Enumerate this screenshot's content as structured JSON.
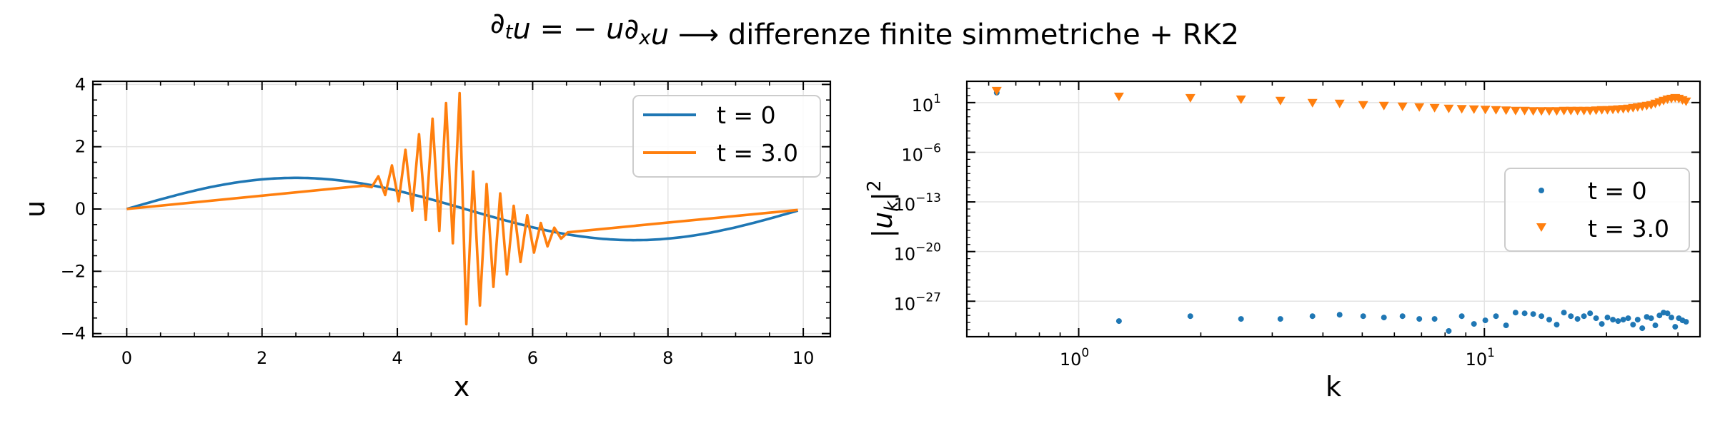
{
  "title": "∂ₜu = − u∂ₓu  ⟶  differenze finite simmetriche + RK2",
  "colors": {
    "t0": "#1f77b4",
    "t3": "#ff7f0e",
    "grid": "#e3e3e3",
    "axis": "#000000"
  },
  "chart_data": [
    {
      "type": "line",
      "xlabel": "x",
      "ylabel": "u",
      "xlim": [
        -0.5,
        10.4
      ],
      "ylim": [
        -4.1,
        4.1
      ],
      "xticks": [
        0,
        2,
        4,
        6,
        8,
        10
      ],
      "yticks": [
        -4,
        -2,
        0,
        2,
        4
      ],
      "grid": true,
      "legend_position": "upper right",
      "series": [
        {
          "name": "t = 0",
          "color": "#1f77b4",
          "function": "sin(2πx/10)",
          "x": [
            0,
            0.5,
            1,
            1.5,
            2,
            2.5,
            3,
            3.5,
            4,
            4.5,
            5,
            5.5,
            6,
            6.5,
            7,
            7.5,
            8,
            8.5,
            9,
            9.5,
            9.92
          ],
          "y": [
            0,
            0.31,
            0.59,
            0.81,
            0.95,
            1.0,
            0.95,
            0.81,
            0.59,
            0.31,
            0.0,
            -0.31,
            -0.59,
            -0.81,
            -0.95,
            -1.0,
            -0.95,
            -0.81,
            -0.59,
            -0.31,
            -0.05
          ]
        },
        {
          "name": "t = 3.0",
          "color": "#ff7f0e",
          "x": [
            0,
            3.5,
            3.62,
            3.72,
            3.82,
            3.92,
            4.02,
            4.12,
            4.22,
            4.32,
            4.42,
            4.52,
            4.62,
            4.72,
            4.82,
            4.92,
            5.02,
            5.12,
            5.22,
            5.32,
            5.42,
            5.52,
            5.62,
            5.72,
            5.82,
            5.92,
            6.02,
            6.12,
            6.22,
            6.32,
            6.42,
            6.52,
            9.92
          ],
          "y": [
            0,
            0.75,
            0.7,
            1.05,
            0.45,
            1.4,
            0.25,
            1.9,
            -0.05,
            2.4,
            -0.35,
            2.9,
            -0.7,
            3.4,
            -1.1,
            3.72,
            -3.7,
            1.2,
            -3.1,
            0.8,
            -2.5,
            0.5,
            -2.1,
            0.1,
            -1.7,
            -0.2,
            -1.4,
            -0.45,
            -1.2,
            -0.6,
            -0.95,
            -0.75,
            -0.03
          ]
        }
      ]
    },
    {
      "type": "scatter",
      "xlabel": "k",
      "ylabel": "|u_k|²",
      "xscale": "log",
      "yscale": "log",
      "xlim": [
        0.53,
        34
      ],
      "ylim_exponent": [
        -32,
        4
      ],
      "xticks": [
        {
          "value": 1,
          "label": "10",
          "exp": "0"
        },
        {
          "value": 10,
          "label": "10",
          "exp": "1"
        }
      ],
      "yticks": [
        {
          "exp": 1,
          "label": "10",
          "sup": "1"
        },
        {
          "exp": -6,
          "label": "10",
          "sup": "−6"
        },
        {
          "exp": -13,
          "label": "10",
          "sup": "−13"
        },
        {
          "exp": -20,
          "label": "10",
          "sup": "−20"
        },
        {
          "exp": -27,
          "label": "10",
          "sup": "−27"
        }
      ],
      "grid": true,
      "legend_position": "center right",
      "series": [
        {
          "name": "t = 0",
          "color": "#1f77b4",
          "marker": "dot",
          "k": [
            0.628,
            1.257,
            1.885,
            2.513,
            3.142,
            3.77,
            4.398,
            5.027,
            5.655,
            6.283,
            6.912,
            7.54,
            8.168,
            8.796,
            9.425,
            10.053,
            10.681,
            11.31,
            11.938,
            12.566,
            13.195,
            13.823,
            14.451,
            15.08,
            15.708,
            16.336,
            16.965,
            17.593,
            18.221,
            18.85,
            19.478,
            20.106,
            20.735,
            21.363,
            21.991,
            22.619,
            23.248,
            23.876,
            24.504,
            25.133,
            25.761,
            26.389,
            27.018,
            27.646,
            28.274,
            28.903,
            29.531,
            30.159,
            30.788,
            31.416
          ],
          "log10_power": [
            2.4,
            -29.8,
            -29.1,
            -29.5,
            -29.5,
            -29.1,
            -28.9,
            -29.1,
            -29.3,
            -29.1,
            -29.5,
            -29.5,
            -31.2,
            -29.1,
            -30.2,
            -29.7,
            -29.1,
            -30.4,
            -28.6,
            -28.7,
            -28.8,
            -29.1,
            -29.6,
            -30.3,
            -28.6,
            -29.1,
            -29.5,
            -29.1,
            -28.7,
            -29.4,
            -30.2,
            -29.3,
            -29.6,
            -29.8,
            -29.6,
            -29.4,
            -30.3,
            -29.6,
            -30.8,
            -29.2,
            -29.4,
            -30.4,
            -29.0,
            -28.6,
            -28.7,
            -29.3,
            -30.6,
            -29.4,
            -29.7,
            -29.9
          ]
        },
        {
          "name": "t = 3.0",
          "color": "#ff7f0e",
          "marker": "triangle-down",
          "k": [
            0.628,
            1.257,
            1.885,
            2.513,
            3.142,
            3.77,
            4.398,
            5.027,
            5.655,
            6.283,
            6.912,
            7.54,
            8.168,
            8.796,
            9.425,
            10.053,
            10.681,
            11.31,
            11.938,
            12.566,
            13.195,
            13.823,
            14.451,
            15.08,
            15.708,
            16.336,
            16.965,
            17.593,
            18.221,
            18.85,
            19.478,
            20.106,
            20.735,
            21.363,
            21.991,
            22.619,
            23.248,
            23.876,
            24.504,
            25.133,
            25.761,
            26.389,
            27.018,
            27.646,
            28.274,
            28.903,
            29.531,
            30.159,
            30.788,
            31.416
          ],
          "log10_power": [
            2.6,
            1.8,
            1.6,
            1.4,
            1.2,
            0.9,
            0.8,
            0.6,
            0.5,
            0.4,
            0.3,
            0.2,
            0.1,
            0.05,
            0.0,
            -0.05,
            -0.1,
            -0.15,
            -0.2,
            -0.2,
            -0.25,
            -0.25,
            -0.25,
            -0.25,
            -0.2,
            -0.2,
            -0.2,
            -0.2,
            -0.2,
            -0.15,
            -0.1,
            -0.1,
            -0.05,
            0.0,
            0.05,
            0.1,
            0.2,
            0.3,
            0.4,
            0.5,
            0.6,
            0.8,
            1.0,
            1.2,
            1.4,
            1.5,
            1.6,
            1.5,
            1.3,
            1.1
          ]
        }
      ]
    }
  ]
}
